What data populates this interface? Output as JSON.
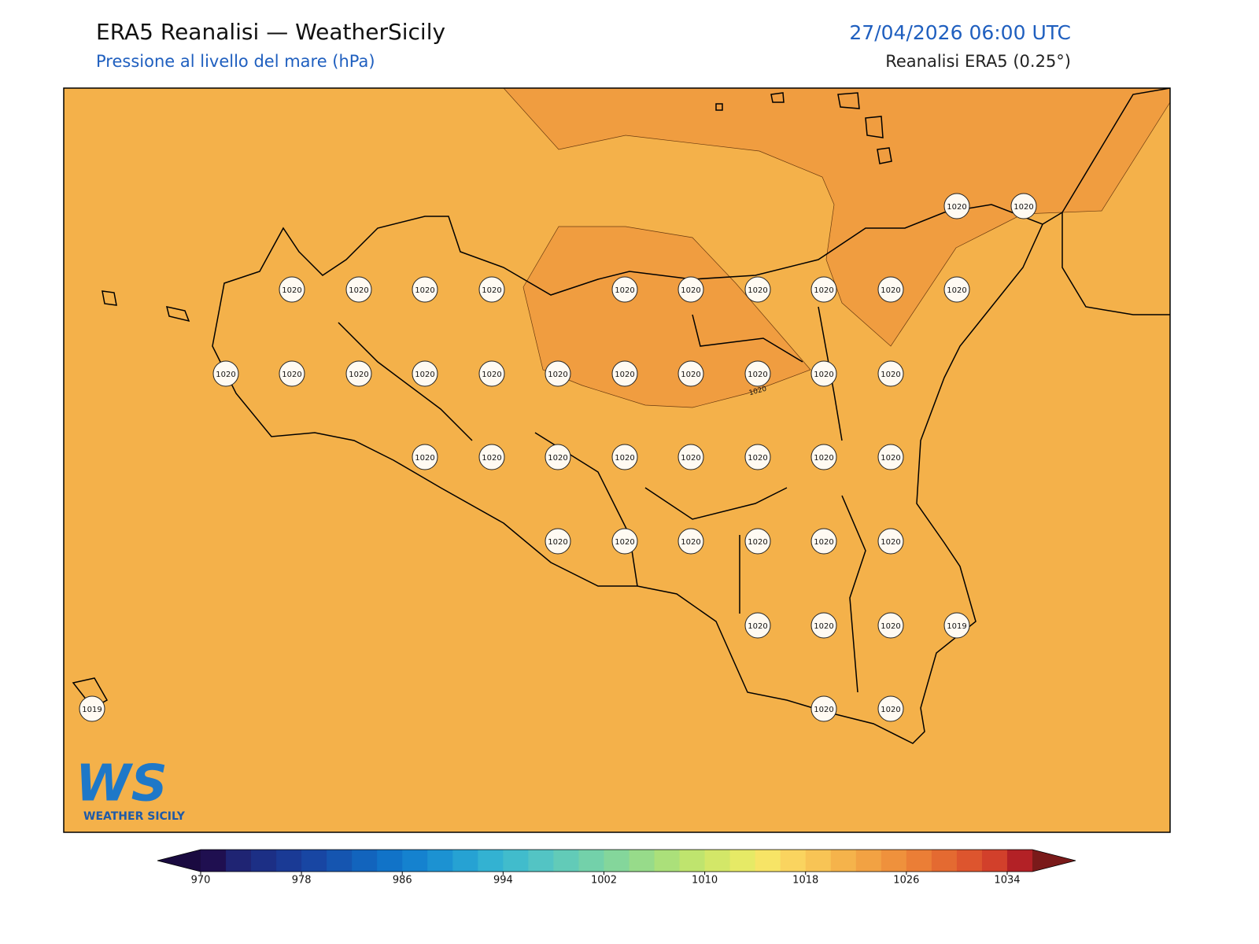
{
  "header": {
    "title": "ERA5 Reanalisi — WeatherSicily",
    "subtitle": "Pressione al livello del mare (hPa)",
    "date": "27/04/2026 06:00 UTC",
    "source": "Reanalisi ERA5 (0.25°)"
  },
  "map": {
    "base_color": "#f4b14a",
    "high_color": "#f09d40",
    "contour_label": "1020",
    "stations": [
      1020,
      1020,
      1020,
      1020,
      1020,
      1020,
      1020,
      1020,
      1020,
      1020,
      1020,
      1020,
      1020,
      1020,
      1020,
      1020,
      1020,
      1020,
      1020,
      1020,
      1020,
      1020,
      1020,
      1020,
      1020,
      1020,
      1020,
      1020,
      1020,
      1020,
      1020,
      1020,
      1020,
      1020,
      1020,
      1020,
      1020,
      1020,
      1020,
      1020,
      1019,
      1019,
      1020,
      1020
    ]
  },
  "logo": {
    "mark": "WS",
    "name": "WEATHER SICILY"
  },
  "colorbar": {
    "range": [
      970,
      1036
    ],
    "ticks": [
      970,
      978,
      986,
      994,
      1002,
      1010,
      1018,
      1026,
      1034
    ],
    "under_color": "#1a0a40",
    "over_color": "#7a1a1a",
    "colors": [
      "#1f0f50",
      "#1f2473",
      "#1c2f85",
      "#1a3a95",
      "#1846a3",
      "#1555b0",
      "#1264bd",
      "#1173c8",
      "#1582cf",
      "#1c92d2",
      "#26a2d3",
      "#33b2d2",
      "#41bccc",
      "#53c4c4",
      "#62cbb8",
      "#73d1aa",
      "#84d69b",
      "#97db8a",
      "#abe07a",
      "#bfe46e",
      "#d3e768",
      "#e6ea66",
      "#f7e466",
      "#fad45f",
      "#f8c455",
      "#f5b34b",
      "#f2a243",
      "#ef913c",
      "#eb7e36",
      "#e46a31",
      "#dd552e",
      "#d2402b",
      "#b32126"
    ]
  }
}
